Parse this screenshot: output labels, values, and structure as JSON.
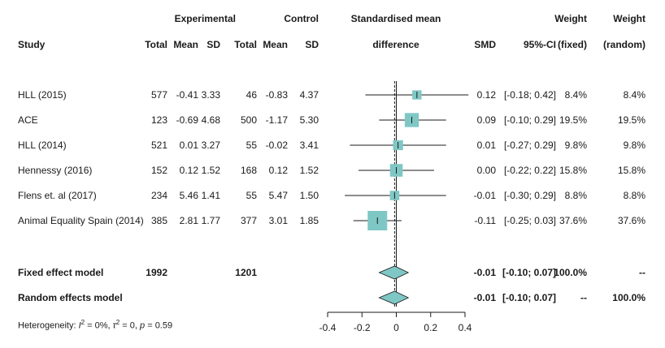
{
  "chart_data": {
    "type": "forest",
    "headers": {
      "group_experimental": "Experimental",
      "group_control": "Control",
      "plot_title_line1": "Standardised mean",
      "plot_title_line2": "difference",
      "weight1_line1": "Weight",
      "weight1_line2": "(fixed)",
      "weight2_line1": "Weight",
      "weight2_line2": "(random)",
      "study": "Study",
      "exp_total": "Total",
      "exp_mean": "Mean",
      "exp_sd": "SD",
      "ctl_total": "Total",
      "ctl_mean": "Mean",
      "ctl_sd": "SD",
      "smd": "SMD",
      "ci": "95%-CI"
    },
    "studies": [
      {
        "study": "HLL (2015)",
        "exp_total": "577",
        "exp_mean": "-0.41",
        "exp_sd": "3.33",
        "ctl_total": "46",
        "ctl_mean": "-0.83",
        "ctl_sd": "4.37",
        "smd": 0.12,
        "ci_low": -0.18,
        "ci_high": 0.42,
        "smd_text": "0.12",
        "ci_text": "[-0.18; 0.42]",
        "w_fixed": "8.4%",
        "w_random": "8.4%",
        "weight": 8.4
      },
      {
        "study": "ACE",
        "exp_total": "123",
        "exp_mean": "-0.69",
        "exp_sd": "4.68",
        "ctl_total": "500",
        "ctl_mean": "-1.17",
        "ctl_sd": "5.30",
        "smd": 0.09,
        "ci_low": -0.1,
        "ci_high": 0.29,
        "smd_text": "0.09",
        "ci_text": "[-0.10; 0.29]",
        "w_fixed": "19.5%",
        "w_random": "19.5%",
        "weight": 19.5
      },
      {
        "study": "HLL (2014)",
        "exp_total": "521",
        "exp_mean": "0.01",
        "exp_sd": "3.27",
        "ctl_total": "55",
        "ctl_mean": "-0.02",
        "ctl_sd": "3.41",
        "smd": 0.01,
        "ci_low": -0.27,
        "ci_high": 0.29,
        "smd_text": "0.01",
        "ci_text": "[-0.27; 0.29]",
        "w_fixed": "9.8%",
        "w_random": "9.8%",
        "weight": 9.8
      },
      {
        "study": "Hennessy (2016)",
        "exp_total": "152",
        "exp_mean": "0.12",
        "exp_sd": "1.52",
        "ctl_total": "168",
        "ctl_mean": "0.12",
        "ctl_sd": "1.52",
        "smd": 0.0,
        "ci_low": -0.22,
        "ci_high": 0.22,
        "smd_text": "0.00",
        "ci_text": "[-0.22; 0.22]",
        "w_fixed": "15.8%",
        "w_random": "15.8%",
        "weight": 15.8
      },
      {
        "study": "Flens et. al (2017)",
        "exp_total": "234",
        "exp_mean": "5.46",
        "exp_sd": "1.41",
        "ctl_total": "55",
        "ctl_mean": "5.47",
        "ctl_sd": "1.50",
        "smd": -0.01,
        "ci_low": -0.3,
        "ci_high": 0.29,
        "smd_text": "-0.01",
        "ci_text": "[-0.30; 0.29]",
        "w_fixed": "8.8%",
        "w_random": "8.8%",
        "weight": 8.8
      },
      {
        "study": "Animal Equality Spain (2014)",
        "exp_total": "385",
        "exp_mean": "2.81",
        "exp_sd": "1.77",
        "ctl_total": "377",
        "ctl_mean": "3.01",
        "ctl_sd": "1.85",
        "smd": -0.11,
        "ci_low": -0.25,
        "ci_high": 0.03,
        "smd_text": "-0.11",
        "ci_text": "[-0.25; 0.03]",
        "w_fixed": "37.6%",
        "w_random": "37.6%",
        "weight": 37.6
      }
    ],
    "summaries": [
      {
        "label": "Fixed effect model",
        "exp_total": "1992",
        "ctl_total": "1201",
        "smd": -0.01,
        "ci_low": -0.1,
        "ci_high": 0.07,
        "smd_text": "-0.01",
        "ci_text": "[-0.10; 0.07]",
        "w_fixed": "100.0%",
        "w_random": "--"
      },
      {
        "label": "Random effects model",
        "exp_total": "",
        "ctl_total": "",
        "smd": -0.01,
        "ci_low": -0.1,
        "ci_high": 0.07,
        "smd_text": "-0.01",
        "ci_text": "[-0.10; 0.07]",
        "w_fixed": "--",
        "w_random": "100.0%"
      }
    ],
    "heterogeneity": {
      "prefix": "Heterogeneity: ",
      "i2_label": "I",
      "i2_value": " = 0%, ",
      "tau_label": "τ",
      "tau_value": " = 0, ",
      "p_label": "p",
      "p_value": " = 0.59"
    },
    "x_axis": {
      "ticks": [
        -0.4,
        -0.2,
        0,
        0.2,
        0.4
      ],
      "tick_labels": [
        "-0.4",
        "-0.2",
        "0",
        "0.2",
        "0.4"
      ],
      "xlim": [
        -0.4,
        0.4
      ]
    },
    "colors": {
      "marker_fill": "#7fc7c4",
      "marker_stroke": "#5aa8a4",
      "line": "#1a1a1a"
    }
  }
}
